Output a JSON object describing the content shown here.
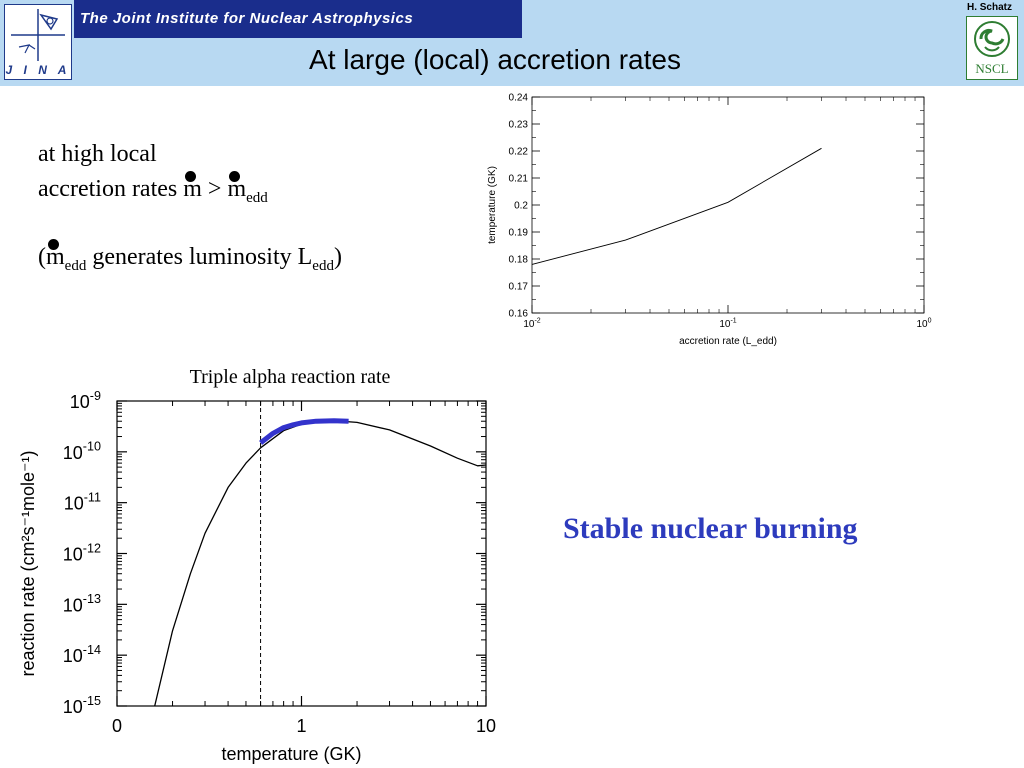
{
  "header": {
    "banner_text": "The Joint Institute for Nuclear Astrophysics",
    "title": "At large (local) accretion rates",
    "author": "H. Schatz",
    "jina_logo_text": "J I N A",
    "nscl_logo_text": "NSCL"
  },
  "body": {
    "line1": "at high local",
    "line2_prefix": "accretion rates ",
    "m": "m",
    "gt": " > ",
    "edd": "edd",
    "line3_open": "(",
    "line3_mid": " generates luminosity L",
    "line3_close": ")",
    "stable": "Stable nuclear burning"
  },
  "chart_data": [
    {
      "type": "line",
      "xlabel": "accretion rate (L_edd)",
      "ylabel": "temperature (GK)",
      "xscale": "log",
      "xlim": [
        0.01,
        1
      ],
      "ylim": [
        0.16,
        0.24
      ],
      "xticks": [
        {
          "base": "10",
          "exp": "-2",
          "value": 0.01
        },
        {
          "base": "10",
          "exp": "-1",
          "value": 0.1
        },
        {
          "base": "10",
          "exp": "0",
          "value": 1
        }
      ],
      "yticks": [
        "0.16",
        "0.17",
        "0.18",
        "0.19",
        "0.2",
        "0.21",
        "0.22",
        "0.23",
        "0.24"
      ],
      "series": [
        {
          "x": [
            0.01,
            0.03,
            0.1,
            0.3
          ],
          "y": [
            0.178,
            0.187,
            0.201,
            0.221
          ]
        }
      ]
    },
    {
      "type": "line",
      "title": "Triple alpha reaction rate",
      "xlabel": "temperature (GK)",
      "ylabel": "reaction rate (cm²s⁻¹mole⁻¹)",
      "xscale": "log",
      "yscale": "log",
      "xlim": [
        0.1,
        10
      ],
      "ylim": [
        1e-15,
        1e-09
      ],
      "xticks": [
        {
          "label": "0",
          "value": 0.1
        },
        {
          "label": "1",
          "value": 1
        },
        {
          "label": "10",
          "value": 10
        }
      ],
      "yticks": [
        {
          "base": "10",
          "exp": "-9",
          "value": -9
        },
        {
          "base": "10",
          "exp": "-10",
          "value": -10
        },
        {
          "base": "10",
          "exp": "-11",
          "value": -11
        },
        {
          "base": "10",
          "exp": "-12",
          "value": -12
        },
        {
          "base": "10",
          "exp": "-13",
          "value": -13
        },
        {
          "base": "10",
          "exp": "-14",
          "value": -14
        },
        {
          "base": "10",
          "exp": "-15",
          "value": -15
        }
      ],
      "series": [
        {
          "color": "#000000",
          "x": [
            0.16,
            0.2,
            0.25,
            0.3,
            0.4,
            0.5,
            0.6,
            0.8,
            1.0,
            1.2,
            1.5,
            2.0,
            3.0,
            5.0,
            7.0,
            9.0,
            10.0
          ],
          "y": [
            1e-15,
            3e-14,
            4e-13,
            2.5e-12,
            2e-11,
            6e-11,
            1.2e-10,
            2.6e-10,
            3.5e-10,
            3.9e-10,
            4.1e-10,
            3.8e-10,
            2.7e-10,
            1.3e-10,
            7.5e-11,
            5.3e-11,
            5.5e-11
          ]
        },
        {
          "color": "#3333cc",
          "x": [
            0.6,
            0.7,
            0.8,
            0.9,
            1.0,
            1.2,
            1.5,
            1.8
          ],
          "y": [
            1.5e-10,
            2.3e-10,
            3e-10,
            3.4e-10,
            3.7e-10,
            4e-10,
            4.1e-10,
            4e-10
          ]
        }
      ],
      "reference_line_x": 0.6
    }
  ]
}
